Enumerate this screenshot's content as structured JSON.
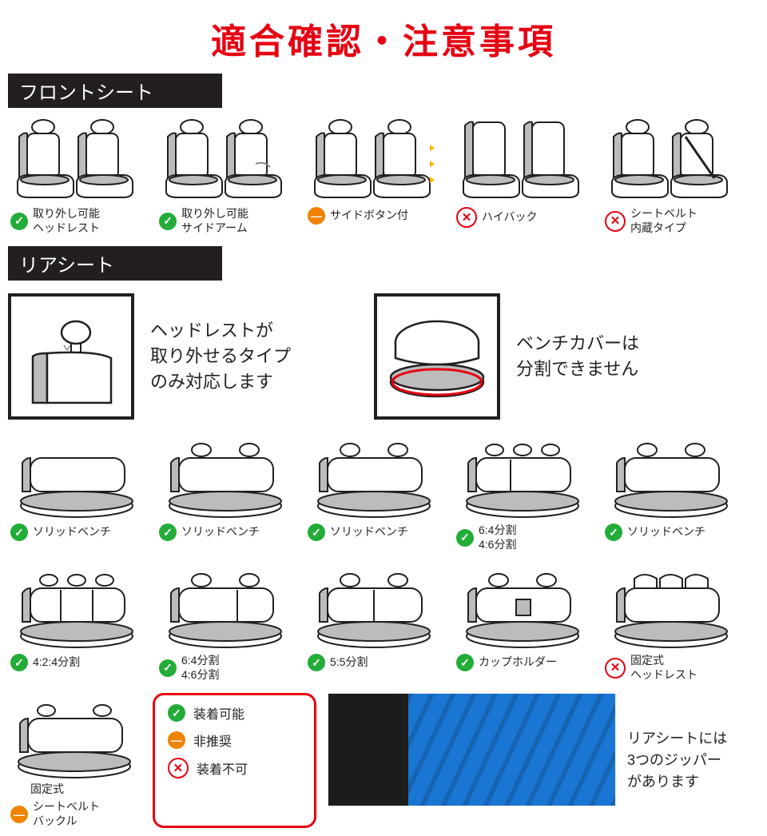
{
  "title": "適合確認・注意事項",
  "sections": {
    "front": "フロントシート",
    "rear": "リアシート"
  },
  "colors": {
    "title": "#e60012",
    "bar_bg": "#231f20",
    "ok": "#22ac38",
    "warn": "#f08300",
    "no": "#e60012",
    "seat_fill": "#ffffff",
    "seat_side": "#bcbcbc",
    "seat_line": "#231f20"
  },
  "front_items": [
    {
      "status": "ok",
      "label": "取り外し可能\nヘッドレスト"
    },
    {
      "status": "ok",
      "label": "取り外し可能\nサイドアーム"
    },
    {
      "status": "warn",
      "label": "サイドボタン付"
    },
    {
      "status": "no",
      "label": "ハイバック"
    },
    {
      "status": "no",
      "label": "シートベルト\n内蔵タイプ"
    }
  ],
  "rear_notices": [
    {
      "text": "ヘッドレストが\n取り外せるタイプ\nのみ対応します"
    },
    {
      "text": "ベンチカバーは\n分割できません"
    }
  ],
  "rear_items": [
    {
      "status": "ok",
      "label": "ソリッドベンチ"
    },
    {
      "status": "ok",
      "label": "ソリッドベンチ"
    },
    {
      "status": "ok",
      "label": "ソリッドベンチ"
    },
    {
      "status": "ok",
      "label": "6:4分割\n4:6分割"
    },
    {
      "status": "ok",
      "label": "ソリッドベンチ"
    },
    {
      "status": "ok",
      "label": "4:2:4分割"
    },
    {
      "status": "ok",
      "label": "6:4分割\n4:6分割"
    },
    {
      "status": "ok",
      "label": "5:5分割"
    },
    {
      "status": "ok",
      "label": "カップホルダー"
    },
    {
      "status": "no",
      "label": "固定式\nヘッドレスト"
    }
  ],
  "last_cell": {
    "status": "warn",
    "label_top": "固定式",
    "label": "シートベルト\nバックル"
  },
  "legend": [
    {
      "status": "ok",
      "label": "装着可能"
    },
    {
      "status": "warn",
      "label": "非推奨"
    },
    {
      "status": "no",
      "label": "装着不可"
    }
  ],
  "photo_note": "リアシートには\n3つのジッパー\nがあります"
}
